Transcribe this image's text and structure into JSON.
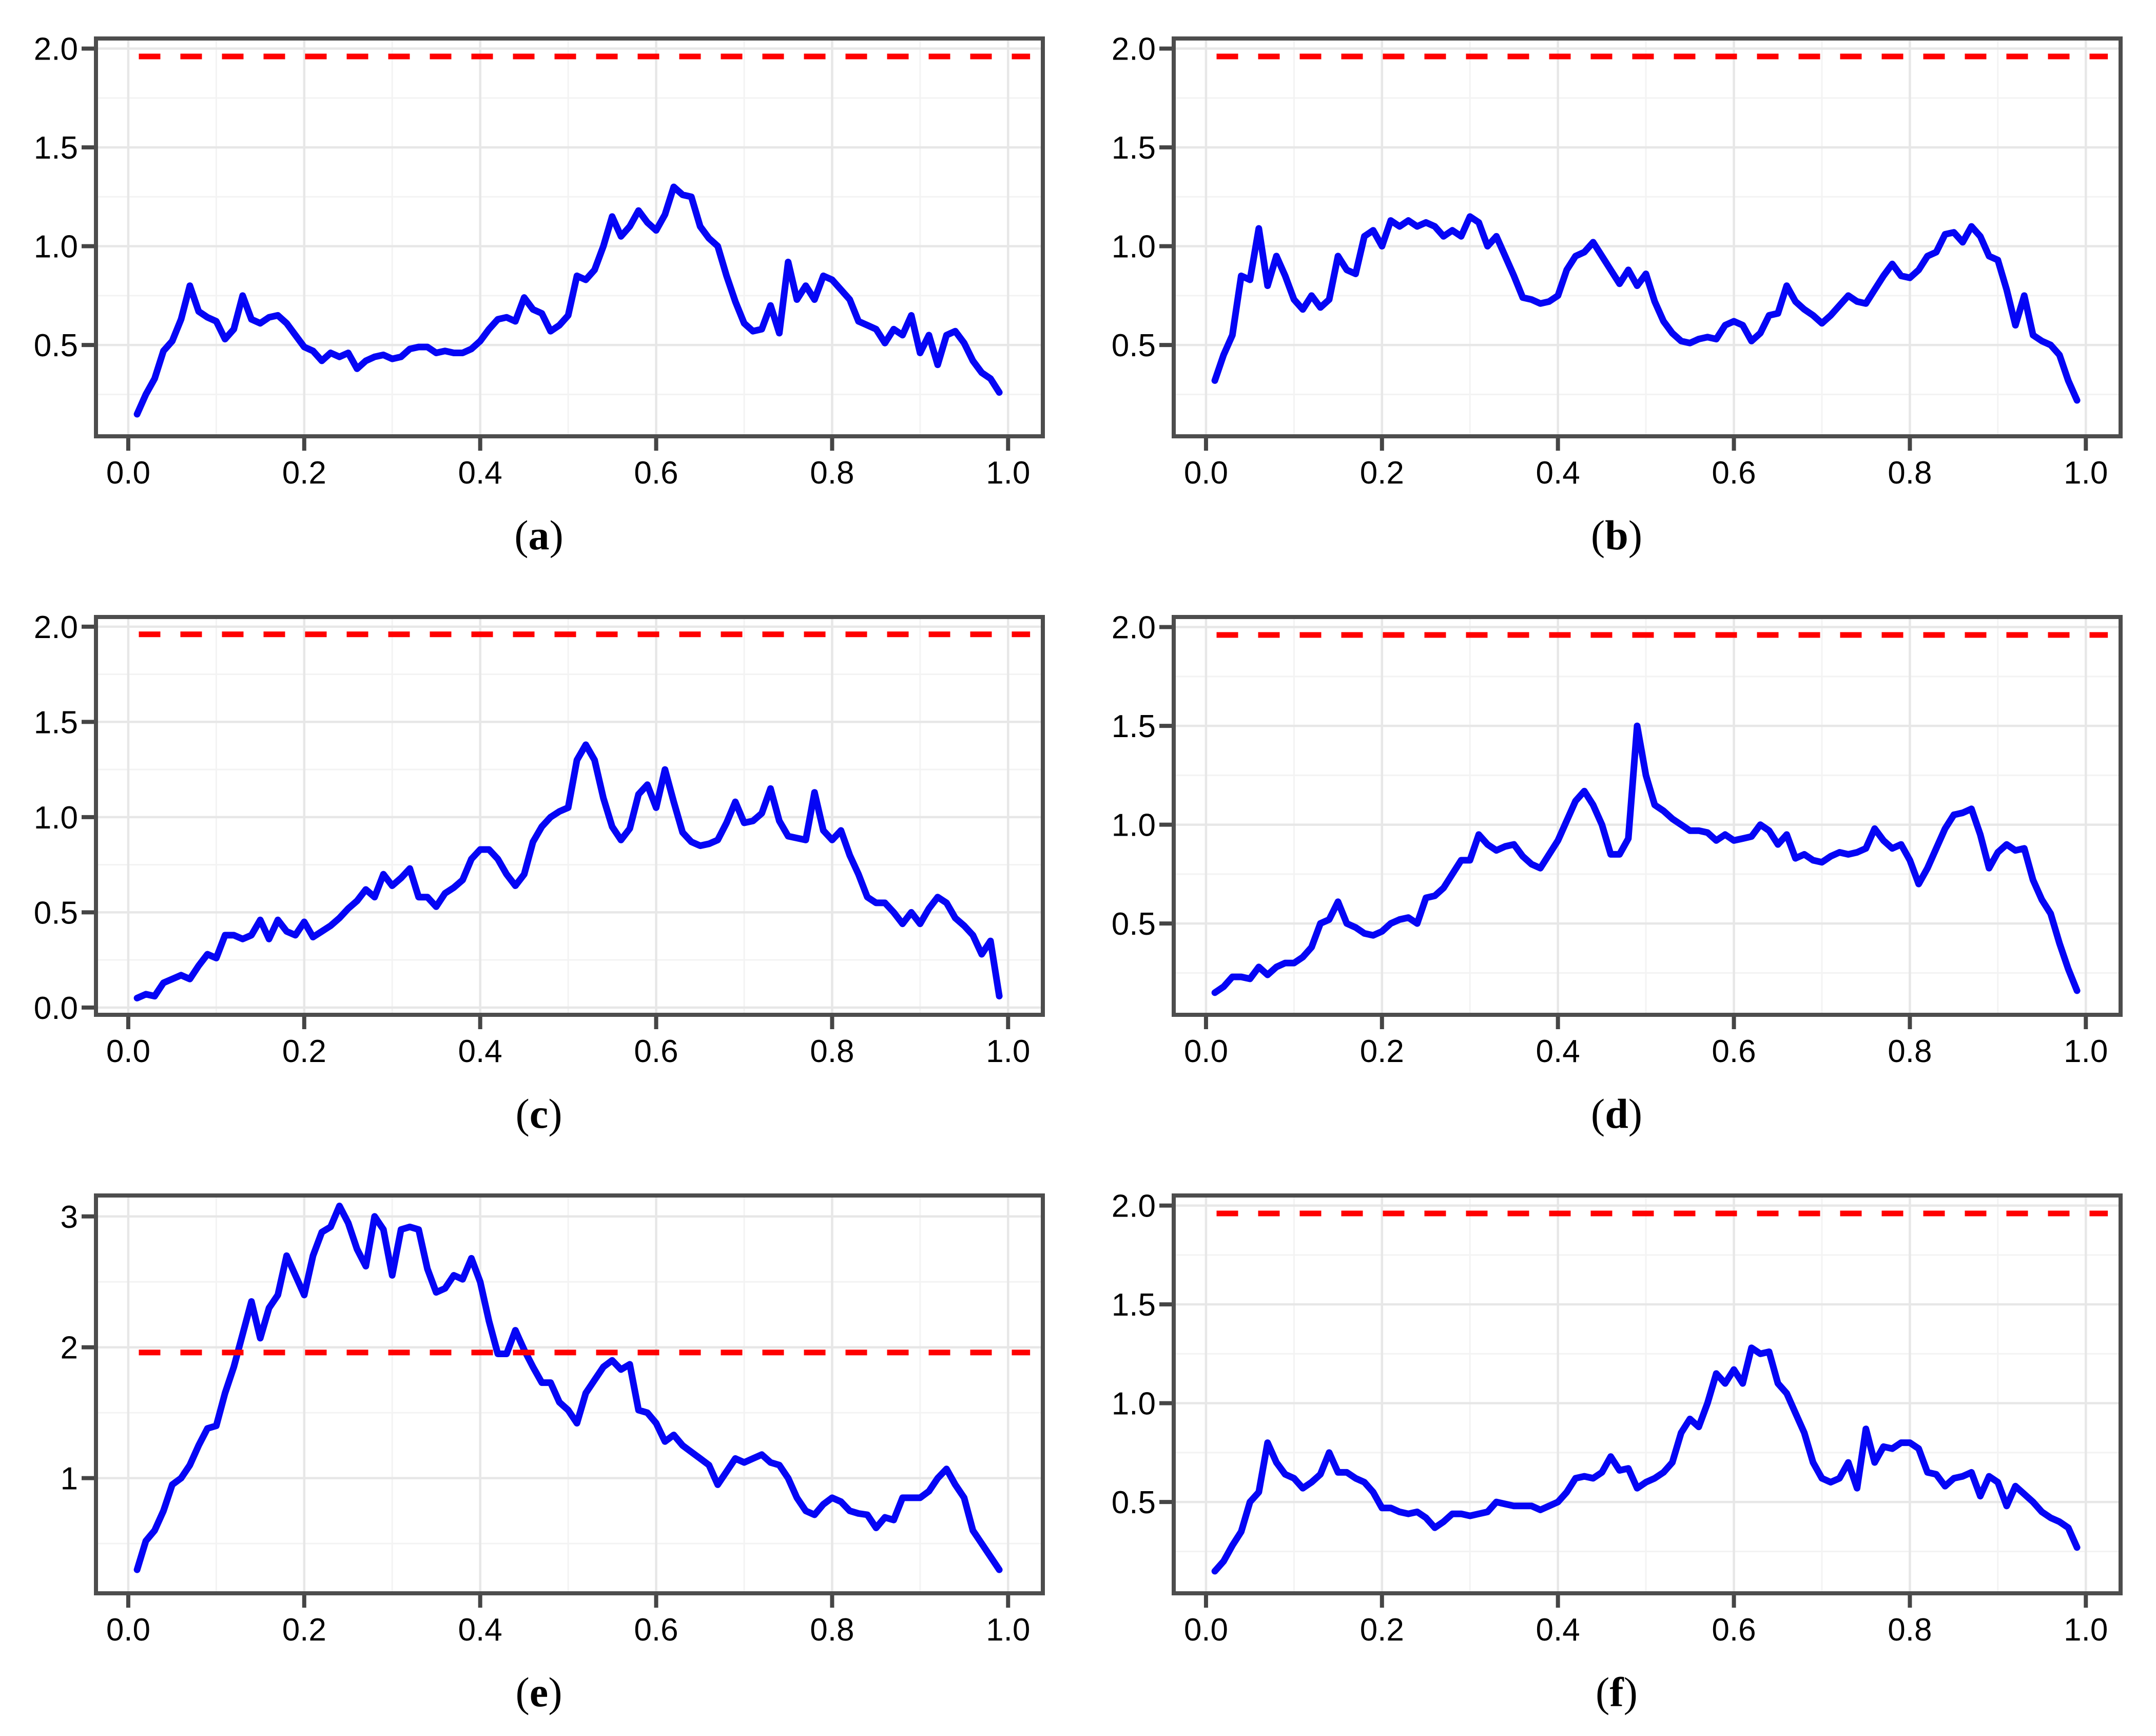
{
  "figure": {
    "background": "#FFFFFF",
    "rows": 3,
    "columns": 2,
    "description_note": ""
  },
  "style": {
    "series_color": "#0505F5",
    "threshold_color": "#FF0000",
    "border_color": "#4D4D4D",
    "grid_major_color": "#E7E7E7",
    "grid_minor_color": "#F3F3F3",
    "tick_color": "#454545",
    "text_color": "#000000"
  },
  "chart_data": [
    {
      "type": "line",
      "panel_label_open": "(",
      "panel_label": "a",
      "panel_label_close": ")",
      "title": "",
      "xlabel": "",
      "ylabel": "",
      "xlim": [
        -0.0367,
        1.0395
      ],
      "ylim": [
        0.038,
        2.051
      ],
      "xticks": [
        0.0,
        0.2,
        0.4,
        0.6,
        0.8,
        1.0
      ],
      "xtick_labels": [
        "0.0",
        "0.2",
        "0.4",
        "0.6",
        "0.8",
        "1.0"
      ],
      "x_minor": [
        0.1,
        0.3,
        0.5,
        0.7,
        0.9
      ],
      "yticks": [
        0.5,
        1.0,
        1.5,
        2.0
      ],
      "ytick_labels": [
        "0.5",
        "1.0",
        "1.5",
        "2.0"
      ],
      "y_minor": [
        0.25,
        0.75,
        1.25,
        1.75
      ],
      "grid": true,
      "legend": null,
      "threshold": 1.96,
      "threshold_style": "dashed",
      "x_start": 0.01,
      "x_step": 0.01,
      "values": [
        0.15,
        0.25,
        0.33,
        0.47,
        0.52,
        0.63,
        0.8,
        0.67,
        0.64,
        0.62,
        0.53,
        0.58,
        0.75,
        0.63,
        0.61,
        0.64,
        0.65,
        0.61,
        0.55,
        0.49,
        0.47,
        0.42,
        0.46,
        0.44,
        0.46,
        0.38,
        0.42,
        0.44,
        0.45,
        0.43,
        0.44,
        0.48,
        0.49,
        0.49,
        0.46,
        0.47,
        0.46,
        0.46,
        0.48,
        0.52,
        0.58,
        0.63,
        0.64,
        0.62,
        0.74,
        0.68,
        0.66,
        0.57,
        0.6,
        0.65,
        0.85,
        0.83,
        0.88,
        1.0,
        1.15,
        1.05,
        1.1,
        1.18,
        1.12,
        1.08,
        1.16,
        1.3,
        1.26,
        1.25,
        1.1,
        1.04,
        1.0,
        0.85,
        0.72,
        0.61,
        0.57,
        0.58,
        0.7,
        0.56,
        0.92,
        0.73,
        0.8,
        0.73,
        0.85,
        0.83,
        0.78,
        0.73,
        0.62,
        0.6,
        0.58,
        0.51,
        0.58,
        0.55,
        0.65,
        0.46,
        0.55,
        0.4,
        0.55,
        0.57,
        0.51,
        0.42,
        0.36,
        0.33,
        0.26
      ]
    },
    {
      "type": "line",
      "panel_label_open": "(",
      "panel_label": "b",
      "panel_label_close": ")",
      "title": "",
      "xlabel": "",
      "ylabel": "",
      "xlim": [
        -0.0367,
        1.0395
      ],
      "ylim": [
        0.038,
        2.051
      ],
      "xticks": [
        0.0,
        0.2,
        0.4,
        0.6,
        0.8,
        1.0
      ],
      "xtick_labels": [
        "0.0",
        "0.2",
        "0.4",
        "0.6",
        "0.8",
        "1.0"
      ],
      "x_minor": [
        0.1,
        0.3,
        0.5,
        0.7,
        0.9
      ],
      "yticks": [
        0.5,
        1.0,
        1.5,
        2.0
      ],
      "ytick_labels": [
        "0.5",
        "1.0",
        "1.5",
        "2.0"
      ],
      "y_minor": [
        0.25,
        0.75,
        1.25,
        1.75
      ],
      "grid": true,
      "legend": null,
      "threshold": 1.96,
      "threshold_style": "dashed",
      "x_start": 0.01,
      "x_step": 0.01,
      "values": [
        0.32,
        0.45,
        0.55,
        0.85,
        0.83,
        1.09,
        0.8,
        0.95,
        0.85,
        0.73,
        0.68,
        0.75,
        0.69,
        0.73,
        0.95,
        0.88,
        0.86,
        1.05,
        1.08,
        1.0,
        1.13,
        1.1,
        1.13,
        1.1,
        1.12,
        1.1,
        1.05,
        1.08,
        1.05,
        1.15,
        1.12,
        1.0,
        1.05,
        0.95,
        0.85,
        0.74,
        0.73,
        0.71,
        0.72,
        0.75,
        0.88,
        0.95,
        0.97,
        1.02,
        0.95,
        0.88,
        0.81,
        0.88,
        0.8,
        0.86,
        0.72,
        0.62,
        0.56,
        0.52,
        0.51,
        0.53,
        0.54,
        0.53,
        0.6,
        0.62,
        0.6,
        0.52,
        0.56,
        0.65,
        0.66,
        0.8,
        0.72,
        0.68,
        0.65,
        0.61,
        0.65,
        0.7,
        0.75,
        0.72,
        0.71,
        0.78,
        0.85,
        0.91,
        0.85,
        0.84,
        0.88,
        0.95,
        0.97,
        1.06,
        1.07,
        1.02,
        1.1,
        1.05,
        0.95,
        0.93,
        0.78,
        0.6,
        0.75,
        0.55,
        0.52,
        0.5,
        0.45,
        0.32,
        0.22
      ]
    },
    {
      "type": "line",
      "panel_label_open": "(",
      "panel_label": "c",
      "panel_label_close": ")",
      "title": "",
      "xlabel": "",
      "ylabel": "",
      "xlim": [
        -0.0367,
        1.0395
      ],
      "ylim": [
        -0.038,
        2.051
      ],
      "xticks": [
        0.0,
        0.2,
        0.4,
        0.6,
        0.8,
        1.0
      ],
      "xtick_labels": [
        "0.0",
        "0.2",
        "0.4",
        "0.6",
        "0.8",
        "1.0"
      ],
      "x_minor": [
        0.1,
        0.3,
        0.5,
        0.7,
        0.9
      ],
      "yticks": [
        0.0,
        0.5,
        1.0,
        1.5,
        2.0
      ],
      "ytick_labels": [
        "0.0",
        "0.5",
        "1.0",
        "1.5",
        "2.0"
      ],
      "y_minor": [
        0.25,
        0.75,
        1.25,
        1.75
      ],
      "grid": true,
      "legend": null,
      "threshold": 1.96,
      "threshold_style": "dashed",
      "x_start": 0.01,
      "x_step": 0.01,
      "values": [
        0.05,
        0.07,
        0.06,
        0.13,
        0.15,
        0.17,
        0.15,
        0.22,
        0.28,
        0.26,
        0.38,
        0.38,
        0.36,
        0.38,
        0.46,
        0.36,
        0.46,
        0.4,
        0.38,
        0.45,
        0.37,
        0.4,
        0.43,
        0.47,
        0.52,
        0.56,
        0.62,
        0.58,
        0.7,
        0.64,
        0.68,
        0.73,
        0.58,
        0.58,
        0.53,
        0.6,
        0.63,
        0.67,
        0.78,
        0.83,
        0.83,
        0.78,
        0.7,
        0.64,
        0.7,
        0.87,
        0.95,
        1.0,
        1.03,
        1.05,
        1.3,
        1.38,
        1.3,
        1.1,
        0.95,
        0.88,
        0.94,
        1.12,
        1.17,
        1.05,
        1.25,
        1.08,
        0.92,
        0.87,
        0.85,
        0.86,
        0.88,
        0.97,
        1.08,
        0.97,
        0.98,
        1.02,
        1.15,
        0.98,
        0.9,
        0.89,
        0.88,
        1.13,
        0.93,
        0.88,
        0.93,
        0.8,
        0.7,
        0.58,
        0.55,
        0.55,
        0.5,
        0.44,
        0.5,
        0.44,
        0.52,
        0.58,
        0.55,
        0.47,
        0.43,
        0.38,
        0.28,
        0.35,
        0.06
      ]
    },
    {
      "type": "line",
      "panel_label_open": "(",
      "panel_label": "d",
      "panel_label_close": ")",
      "title": "",
      "xlabel": "",
      "ylabel": "",
      "xlim": [
        -0.0367,
        1.0395
      ],
      "ylim": [
        0.038,
        2.051
      ],
      "xticks": [
        0.0,
        0.2,
        0.4,
        0.6,
        0.8,
        1.0
      ],
      "xtick_labels": [
        "0.0",
        "0.2",
        "0.4",
        "0.6",
        "0.8",
        "1.0"
      ],
      "x_minor": [
        0.1,
        0.3,
        0.5,
        0.7,
        0.9
      ],
      "yticks": [
        0.5,
        1.0,
        1.5,
        2.0
      ],
      "ytick_labels": [
        "0.5",
        "1.0",
        "1.5",
        "2.0"
      ],
      "y_minor": [
        0.25,
        0.75,
        1.25,
        1.75
      ],
      "grid": true,
      "legend": null,
      "threshold": 1.96,
      "threshold_style": "dashed",
      "x_start": 0.01,
      "x_step": 0.01,
      "values": [
        0.15,
        0.18,
        0.23,
        0.23,
        0.22,
        0.28,
        0.24,
        0.28,
        0.3,
        0.3,
        0.33,
        0.38,
        0.5,
        0.52,
        0.61,
        0.5,
        0.48,
        0.45,
        0.44,
        0.46,
        0.5,
        0.52,
        0.53,
        0.5,
        0.63,
        0.64,
        0.68,
        0.75,
        0.82,
        0.82,
        0.95,
        0.9,
        0.87,
        0.89,
        0.9,
        0.84,
        0.8,
        0.78,
        0.85,
        0.92,
        1.02,
        1.12,
        1.17,
        1.1,
        1.0,
        0.85,
        0.85,
        0.93,
        1.5,
        1.25,
        1.1,
        1.07,
        1.03,
        1.0,
        0.97,
        0.97,
        0.96,
        0.92,
        0.95,
        0.92,
        0.93,
        0.94,
        1.0,
        0.97,
        0.9,
        0.95,
        0.83,
        0.85,
        0.82,
        0.81,
        0.84,
        0.86,
        0.85,
        0.86,
        0.88,
        0.98,
        0.92,
        0.88,
        0.9,
        0.82,
        0.7,
        0.78,
        0.88,
        0.98,
        1.05,
        1.06,
        1.08,
        0.95,
        0.78,
        0.86,
        0.9,
        0.87,
        0.88,
        0.72,
        0.62,
        0.55,
        0.4,
        0.27,
        0.16
      ]
    },
    {
      "type": "line",
      "panel_label_open": "(",
      "panel_label": "e",
      "panel_label_close": ")",
      "title": "",
      "xlabel": "",
      "ylabel": "",
      "xlim": [
        -0.0367,
        1.0395
      ],
      "ylim": [
        0.12,
        3.16
      ],
      "xticks": [
        0.0,
        0.2,
        0.4,
        0.6,
        0.8,
        1.0
      ],
      "xtick_labels": [
        "0.0",
        "0.2",
        "0.4",
        "0.6",
        "0.8",
        "1.0"
      ],
      "x_minor": [
        0.1,
        0.3,
        0.5,
        0.7,
        0.9
      ],
      "yticks": [
        1,
        2,
        3
      ],
      "ytick_labels": [
        "1",
        "2",
        "3"
      ],
      "y_minor": [
        0.5,
        1.5,
        2.5
      ],
      "grid": true,
      "legend": null,
      "threshold": 1.96,
      "threshold_style": "dashed",
      "x_start": 0.01,
      "x_step": 0.01,
      "values": [
        0.3,
        0.52,
        0.6,
        0.75,
        0.95,
        1.0,
        1.1,
        1.25,
        1.38,
        1.4,
        1.65,
        1.85,
        2.1,
        2.35,
        2.07,
        2.3,
        2.4,
        2.7,
        2.55,
        2.4,
        2.7,
        2.88,
        2.92,
        3.08,
        2.95,
        2.75,
        2.62,
        3.0,
        2.9,
        2.55,
        2.9,
        2.92,
        2.9,
        2.6,
        2.42,
        2.45,
        2.55,
        2.52,
        2.68,
        2.5,
        2.2,
        1.95,
        1.95,
        2.13,
        1.98,
        1.85,
        1.73,
        1.73,
        1.58,
        1.52,
        1.42,
        1.65,
        1.75,
        1.85,
        1.9,
        1.83,
        1.87,
        1.52,
        1.5,
        1.42,
        1.28,
        1.33,
        1.25,
        1.2,
        1.15,
        1.1,
        0.95,
        1.05,
        1.15,
        1.12,
        1.15,
        1.18,
        1.12,
        1.1,
        1.0,
        0.85,
        0.75,
        0.72,
        0.8,
        0.85,
        0.82,
        0.75,
        0.73,
        0.72,
        0.62,
        0.7,
        0.68,
        0.85,
        0.85,
        0.85,
        0.9,
        1.0,
        1.07,
        0.95,
        0.85,
        0.6,
        0.5,
        0.4,
        0.3
      ]
    },
    {
      "type": "line",
      "panel_label_open": "(",
      "panel_label": "f",
      "panel_label_close": ")",
      "title": "",
      "xlabel": "",
      "ylabel": "",
      "xlim": [
        -0.0367,
        1.0395
      ],
      "ylim": [
        0.038,
        2.051
      ],
      "xticks": [
        0.0,
        0.2,
        0.4,
        0.6,
        0.8,
        1.0
      ],
      "xtick_labels": [
        "0.0",
        "0.2",
        "0.4",
        "0.6",
        "0.8",
        "1.0"
      ],
      "x_minor": [
        0.1,
        0.3,
        0.5,
        0.7,
        0.9
      ],
      "yticks": [
        0.5,
        1.0,
        1.5,
        2.0
      ],
      "ytick_labels": [
        "0.5",
        "1.0",
        "1.5",
        "2.0"
      ],
      "y_minor": [
        0.25,
        0.75,
        1.25,
        1.75
      ],
      "grid": true,
      "legend": null,
      "threshold": 1.96,
      "threshold_style": "dashed",
      "x_start": 0.01,
      "x_step": 0.01,
      "values": [
        0.15,
        0.2,
        0.28,
        0.35,
        0.5,
        0.55,
        0.8,
        0.7,
        0.64,
        0.62,
        0.57,
        0.6,
        0.64,
        0.75,
        0.65,
        0.65,
        0.62,
        0.6,
        0.55,
        0.47,
        0.47,
        0.45,
        0.44,
        0.45,
        0.42,
        0.37,
        0.4,
        0.44,
        0.44,
        0.43,
        0.44,
        0.45,
        0.5,
        0.49,
        0.48,
        0.48,
        0.48,
        0.46,
        0.48,
        0.5,
        0.55,
        0.62,
        0.63,
        0.62,
        0.65,
        0.73,
        0.66,
        0.67,
        0.57,
        0.6,
        0.62,
        0.65,
        0.7,
        0.85,
        0.92,
        0.88,
        1.0,
        1.15,
        1.1,
        1.17,
        1.1,
        1.28,
        1.25,
        1.26,
        1.1,
        1.05,
        0.95,
        0.85,
        0.7,
        0.62,
        0.6,
        0.62,
        0.7,
        0.57,
        0.87,
        0.7,
        0.78,
        0.77,
        0.8,
        0.8,
        0.77,
        0.65,
        0.64,
        0.58,
        0.62,
        0.63,
        0.65,
        0.53,
        0.63,
        0.6,
        0.48,
        0.58,
        0.54,
        0.5,
        0.45,
        0.42,
        0.4,
        0.37,
        0.27
      ]
    }
  ]
}
